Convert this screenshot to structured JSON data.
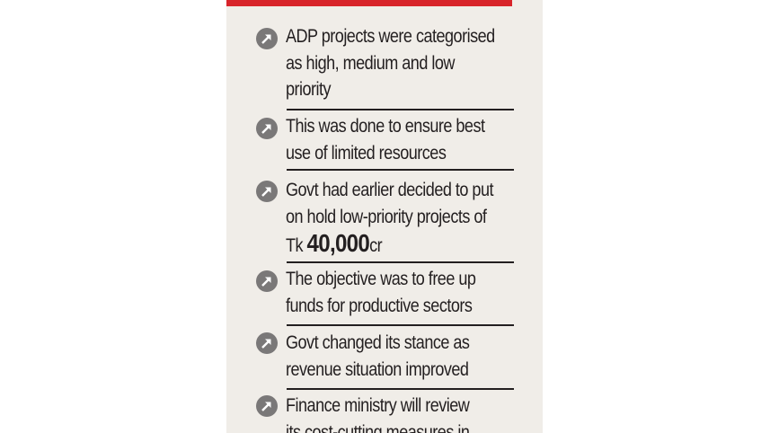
{
  "colors": {
    "panel_bg": "#f0ede8",
    "accent_red": "#d8242a",
    "text": "#231f20",
    "bullet": "#7a7878",
    "rule": "#231f20"
  },
  "bullet_icon": "arrow-up-right-circle-icon",
  "items": [
    {
      "lines": [
        "ADP projects were categorised",
        "as high, medium and low",
        "priority"
      ]
    },
    {
      "lines": [
        "This was done to ensure best",
        "use of limited resources"
      ]
    },
    {
      "lines": [
        "Govt had earlier decided to put",
        "on hold low-priority projects of"
      ],
      "amount": {
        "prefix": "Tk ",
        "value": "40,000",
        "suffix": "cr"
      }
    },
    {
      "lines": [
        "The objective was to free up",
        "funds for productive sectors"
      ]
    },
    {
      "lines": [
        "Govt changed its stance as",
        "revenue situation improved"
      ]
    },
    {
      "lines": [
        "Finance ministry will review",
        "its cost-cutting measures in"
      ]
    }
  ]
}
